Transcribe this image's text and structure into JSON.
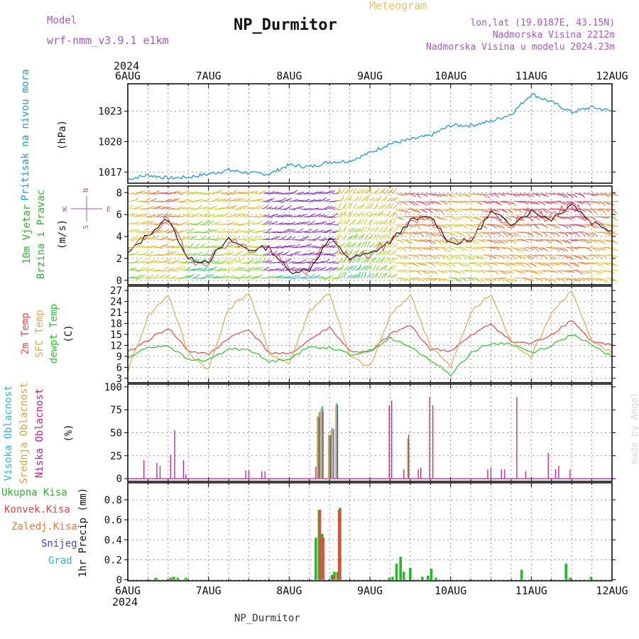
{
  "header": {
    "title": "NP_Durmitor",
    "model_label": "Model",
    "model_value": "wrf-nmm_v3.9.1 e1km",
    "meteogram": "Meteogram",
    "lonlat": "lon,lat (19.0187E, 43.15N)",
    "altitude": "Nadmorska Visina 2212m",
    "model_altitude": "Nadmorska Visina u modelu 2024.23m",
    "year_top": "2024",
    "year_bottom": "2024",
    "footer": "NP_Durmitor",
    "watermark": "made by Angel"
  },
  "colors": {
    "pressure": "#1e9bdc",
    "wind_label": "#22bb22",
    "temp2m": "#ee4444",
    "sfc": "#ddaa55",
    "dewpt": "#22cc22",
    "cloud_high": "#2ab8d8",
    "cloud_mid": "#d6a640",
    "cloud_low": "#cc1c8c",
    "title": "#111111",
    "purple": "#aa55cc",
    "meteogram": "#f0c060"
  },
  "chart_data": [
    {
      "type": "line",
      "title": "",
      "xlabel": "",
      "ylabel": "Pritisak na nivou mora",
      "unit": "(hPa)",
      "x_ticks": [
        "6AUG",
        "7AUG",
        "8AUG",
        "9AUG",
        "10AUG",
        "11AUG",
        "12AUG"
      ],
      "yticks": [
        1017,
        1020,
        1023
      ],
      "ylim": [
        1015.9,
        1025.7
      ],
      "x_days": [
        0,
        0.25,
        0.5,
        0.75,
        1,
        1.25,
        1.5,
        1.75,
        2,
        2.25,
        2.5,
        2.75,
        3,
        3.25,
        3.5,
        3.75,
        4,
        4.25,
        4.5,
        4.75,
        5,
        5.25,
        5.5,
        5.75,
        6
      ],
      "series": [
        {
          "values": [
            1016.3,
            1016.7,
            1016.4,
            1016.5,
            1016.8,
            1017.2,
            1016.9,
            1016.8,
            1017.7,
            1017.5,
            1018.0,
            1018.1,
            1018.9,
            1019.8,
            1020.2,
            1020.6,
            1021.6,
            1021.6,
            1022.0,
            1022.7,
            1024.7,
            1023.9,
            1022.9,
            1023.4,
            1023.0
          ]
        }
      ]
    },
    {
      "type": "line",
      "title": "",
      "ylabel_line1": "10m Vjetar",
      "ylabel_line2": "Brzina i Pravac",
      "unit": "(m/s)",
      "compass": {
        "n": "N",
        "s": "S",
        "w": "W",
        "e": "E"
      },
      "yticks": [
        0,
        2,
        4,
        6,
        8
      ],
      "ylim": [
        -0.4,
        8.6
      ],
      "x_days": [
        0,
        0.25,
        0.5,
        0.75,
        1,
        1.25,
        1.5,
        1.75,
        2,
        2.25,
        2.5,
        2.75,
        3,
        3.25,
        3.5,
        3.75,
        4,
        4.25,
        4.5,
        4.75,
        5,
        5.25,
        5.5,
        5.75,
        6
      ],
      "series": [
        {
          "name": "speed",
          "values": [
            2.4,
            4.2,
            5.6,
            1.9,
            1.8,
            3.7,
            2.8,
            3.0,
            0.8,
            1.0,
            3.8,
            2.0,
            2.4,
            3.5,
            5.4,
            5.8,
            3.4,
            3.6,
            6.2,
            5.2,
            6.3,
            5.6,
            7.0,
            5.3,
            4.6
          ]
        }
      ]
    },
    {
      "type": "line",
      "title": "",
      "ylabel_line1": "2m Temp",
      "ylabel_line2": "SFC Temp",
      "ylabel_line3": "dewpt Temp",
      "unit": "(C)",
      "yticks": [
        3,
        6,
        9,
        12,
        15,
        18,
        21,
        24,
        27
      ],
      "ylim": [
        1.8,
        28.2
      ],
      "x_days": [
        0,
        0.25,
        0.5,
        0.75,
        1,
        1.25,
        1.5,
        1.75,
        2,
        2.25,
        2.5,
        2.75,
        3,
        3.25,
        3.5,
        3.75,
        4,
        4.25,
        4.5,
        4.75,
        5,
        5.25,
        5.5,
        5.75,
        6
      ],
      "series": [
        {
          "name": "2m Temp",
          "values": [
            10.0,
            13.5,
            16.8,
            10.5,
            9.5,
            14.0,
            16.5,
            10.0,
            9.5,
            13.5,
            17.0,
            10.5,
            10.0,
            15.0,
            17.5,
            11.0,
            10.5,
            14.5,
            18.0,
            13.0,
            12.5,
            15.0,
            19.0,
            13.0,
            12.0
          ]
        },
        {
          "name": "SFC Temp",
          "values": [
            5.0,
            20.0,
            26.0,
            10.0,
            5.5,
            22.0,
            26.5,
            10.0,
            7.0,
            21.5,
            26.5,
            9.0,
            6.0,
            20.0,
            26.0,
            12.0,
            6.0,
            21.0,
            26.0,
            13.0,
            9.0,
            21.0,
            27.0,
            13.0,
            10.0
          ]
        },
        {
          "name": "dewpt Temp",
          "values": [
            8.5,
            11.5,
            12.0,
            8.0,
            8.0,
            11.0,
            11.0,
            7.5,
            8.5,
            11.5,
            11.5,
            9.5,
            10.5,
            14.0,
            11.5,
            8.0,
            4.0,
            10.0,
            12.5,
            12.5,
            10.0,
            12.0,
            15.0,
            12.0,
            9.0
          ]
        }
      ]
    },
    {
      "type": "bar",
      "title": "",
      "ylabel_line1": "Visoka Oblacnost",
      "ylabel_line2": "Srednja Oblacnost",
      "ylabel_line3": "Niska Oblacnost",
      "unit": "(%)",
      "yticks": [
        0,
        25,
        50,
        75,
        100
      ],
      "ylim": [
        -3,
        103
      ],
      "series": [
        {
          "name": "Visoka Oblacnost",
          "bars": [
            [
              2.36,
              66
            ],
            [
              2.38,
              73
            ],
            [
              2.41,
              79
            ],
            [
              2.5,
              46
            ],
            [
              2.53,
              55
            ],
            [
              2.59,
              82
            ],
            [
              3.48,
              40
            ]
          ]
        },
        {
          "name": "Srednja Oblacnost",
          "bars": [
            [
              2.35,
              68
            ],
            [
              2.37,
              72
            ],
            [
              2.4,
              77
            ],
            [
              2.49,
              48
            ],
            [
              2.52,
              52
            ],
            [
              2.58,
              80
            ],
            [
              3.47,
              44
            ]
          ]
        },
        {
          "name": "Niska Oblacnost",
          "bars": [
            [
              0.2,
              20
            ],
            [
              0.36,
              17
            ],
            [
              0.4,
              14
            ],
            [
              0.53,
              26
            ],
            [
              0.58,
              53
            ],
            [
              0.69,
              20
            ],
            [
              0.72,
              5
            ],
            [
              1.46,
              9
            ],
            [
              1.5,
              9
            ],
            [
              1.66,
              8
            ],
            [
              1.7,
              8
            ],
            [
              2.33,
              13
            ],
            [
              2.37,
              67
            ],
            [
              2.42,
              74
            ],
            [
              2.51,
              47
            ],
            [
              2.55,
              54
            ],
            [
              2.6,
              80
            ],
            [
              3.24,
              80
            ],
            [
              3.27,
              85
            ],
            [
              3.42,
              10
            ],
            [
              3.48,
              48
            ],
            [
              3.6,
              10
            ],
            [
              3.63,
              12
            ],
            [
              3.74,
              89
            ],
            [
              3.78,
              80
            ],
            [
              4.46,
              10
            ],
            [
              4.5,
              12
            ],
            [
              4.63,
              10
            ],
            [
              4.67,
              10
            ],
            [
              4.82,
              89
            ],
            [
              4.93,
              8
            ],
            [
              5.21,
              28
            ],
            [
              5.3,
              10
            ],
            [
              5.34,
              14
            ],
            [
              5.48,
              10
            ]
          ]
        }
      ]
    },
    {
      "type": "bar",
      "title": "",
      "ylabel": "1hr Precip",
      "unit": "(mm)",
      "legend": [
        "Ukupna Kisa",
        "Konvek.Kisa",
        "Zaledj.Kisa",
        "Snijeg",
        "Grad"
      ],
      "yticks": [
        0,
        0.2,
        0.4,
        0.6,
        0.8
      ],
      "ylim": [
        -0.01,
        0.97
      ],
      "series": [
        {
          "name": "Ukupna Kisa",
          "bars": [
            [
              0.35,
              0.02
            ],
            [
              0.53,
              0.02
            ],
            [
              0.57,
              0.03
            ],
            [
              0.62,
              0.02
            ],
            [
              0.72,
              0.02
            ],
            [
              2.33,
              0.42
            ],
            [
              2.37,
              0.7
            ],
            [
              2.41,
              0.46
            ],
            [
              2.53,
              0.05
            ],
            [
              2.56,
              0.08
            ],
            [
              2.6,
              0.08
            ],
            [
              2.63,
              0.72
            ],
            [
              3.24,
              0.02
            ],
            [
              3.28,
              0.03
            ],
            [
              3.33,
              0.16
            ],
            [
              3.38,
              0.23
            ],
            [
              3.42,
              0.08
            ],
            [
              3.5,
              0.12
            ],
            [
              3.65,
              0.03
            ],
            [
              3.72,
              0.04
            ],
            [
              3.76,
              0.11
            ],
            [
              3.82,
              0.02
            ],
            [
              4.88,
              0.1
            ],
            [
              5.43,
              0.16
            ],
            [
              5.48,
              0.02
            ],
            [
              5.74,
              0.03
            ]
          ]
        },
        {
          "name": "Konvek.Kisa",
          "bars": [
            [
              0.34,
              0.01
            ],
            [
              0.54,
              0.01
            ],
            [
              2.38,
              0.7
            ],
            [
              2.42,
              0.42
            ],
            [
              2.55,
              0.04
            ],
            [
              2.62,
              0.7
            ]
          ]
        }
      ]
    }
  ]
}
